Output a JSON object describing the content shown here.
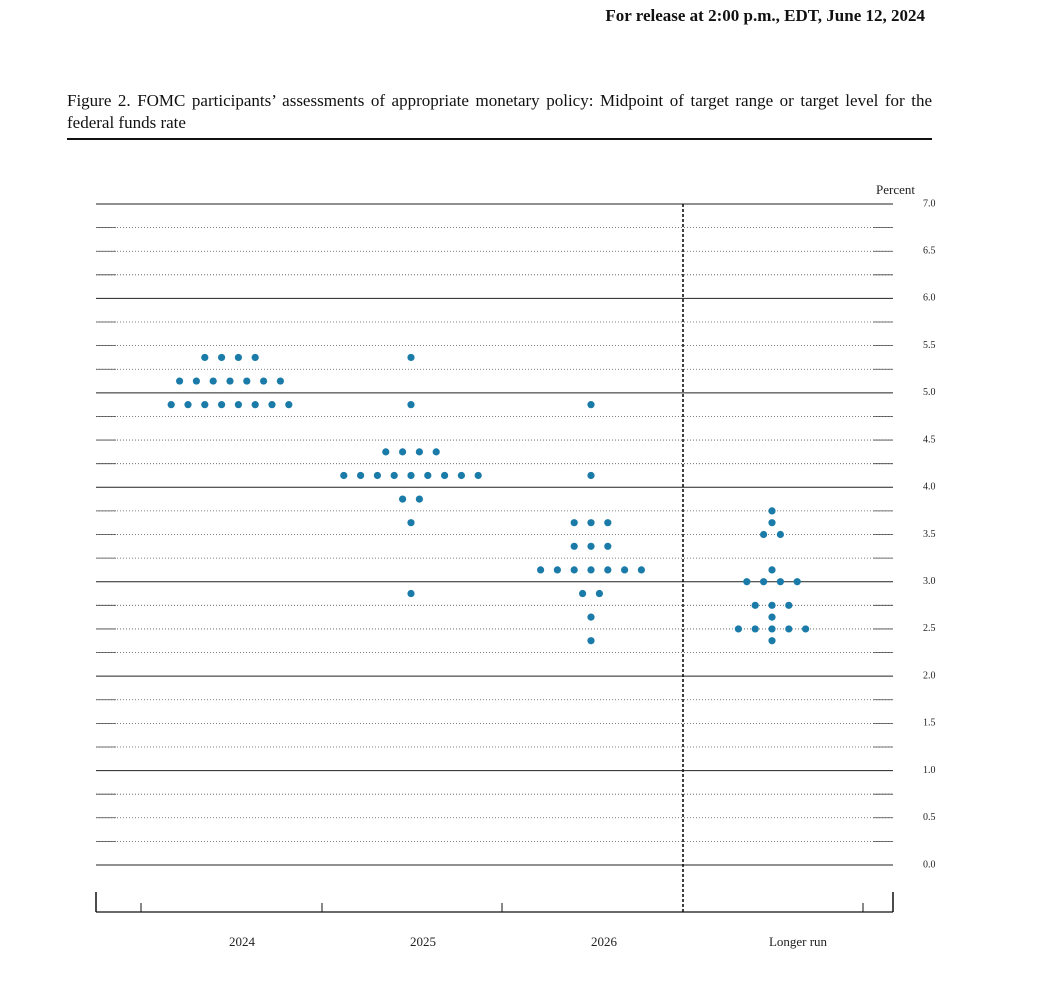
{
  "header": "For release at 2:00 p.m., EDT, June 12, 2024",
  "chart_data": {
    "type": "dot",
    "title": "Figure 2.  FOMC participants’ assessments of appropriate monetary policy: Midpoint of target range or target level for the federal funds rate",
    "y_unit_label": "Percent",
    "categories": [
      "2024",
      "2025",
      "2026",
      "Longer run"
    ],
    "color": "#1b7ba8",
    "values": [
      [
        5.375,
        5.375,
        5.375,
        5.375,
        5.125,
        5.125,
        5.125,
        5.125,
        5.125,
        5.125,
        5.125,
        4.875,
        4.875,
        4.875,
        4.875,
        4.875,
        4.875,
        4.875,
        4.875
      ],
      [
        5.375,
        4.875,
        4.375,
        4.375,
        4.375,
        4.375,
        4.125,
        4.125,
        4.125,
        4.125,
        4.125,
        4.125,
        4.125,
        4.125,
        4.125,
        3.875,
        3.875,
        3.625,
        2.875
      ],
      [
        4.875,
        4.125,
        3.625,
        3.625,
        3.625,
        3.375,
        3.375,
        3.375,
        3.125,
        3.125,
        3.125,
        3.125,
        3.125,
        3.125,
        3.125,
        2.875,
        2.875,
        2.625,
        2.375
      ],
      [
        3.75,
        3.625,
        3.5,
        3.5,
        3.125,
        3.0,
        3.0,
        3.0,
        3.0,
        2.75,
        2.75,
        2.75,
        2.625,
        2.5,
        2.5,
        2.5,
        2.5,
        2.5,
        2.375
      ]
    ],
    "ylim": [
      0,
      7
    ],
    "yticks": [
      {
        "value": 0,
        "label": "0.0"
      },
      0.5,
      {
        "value": 1,
        "label": "1.0"
      },
      1.5,
      {
        "value": 2,
        "label": "2.0"
      },
      2.5,
      {
        "value": 3,
        "label": "3.0"
      },
      3.5,
      {
        "value": 4,
        "label": "4.0"
      },
      4.5,
      {
        "value": 5,
        "label": "5.0"
      },
      5.5,
      {
        "value": 6,
        "label": "6.0"
      },
      6.5,
      {
        "value": 7,
        "label": "7.0"
      }
    ],
    "minor_yticks": [
      0.25,
      0.75,
      1.25,
      1.75,
      2.25,
      2.75,
      3.25,
      3.75,
      4.25,
      4.75,
      5.25,
      5.75,
      6.25,
      6.75
    ],
    "grid": true
  }
}
